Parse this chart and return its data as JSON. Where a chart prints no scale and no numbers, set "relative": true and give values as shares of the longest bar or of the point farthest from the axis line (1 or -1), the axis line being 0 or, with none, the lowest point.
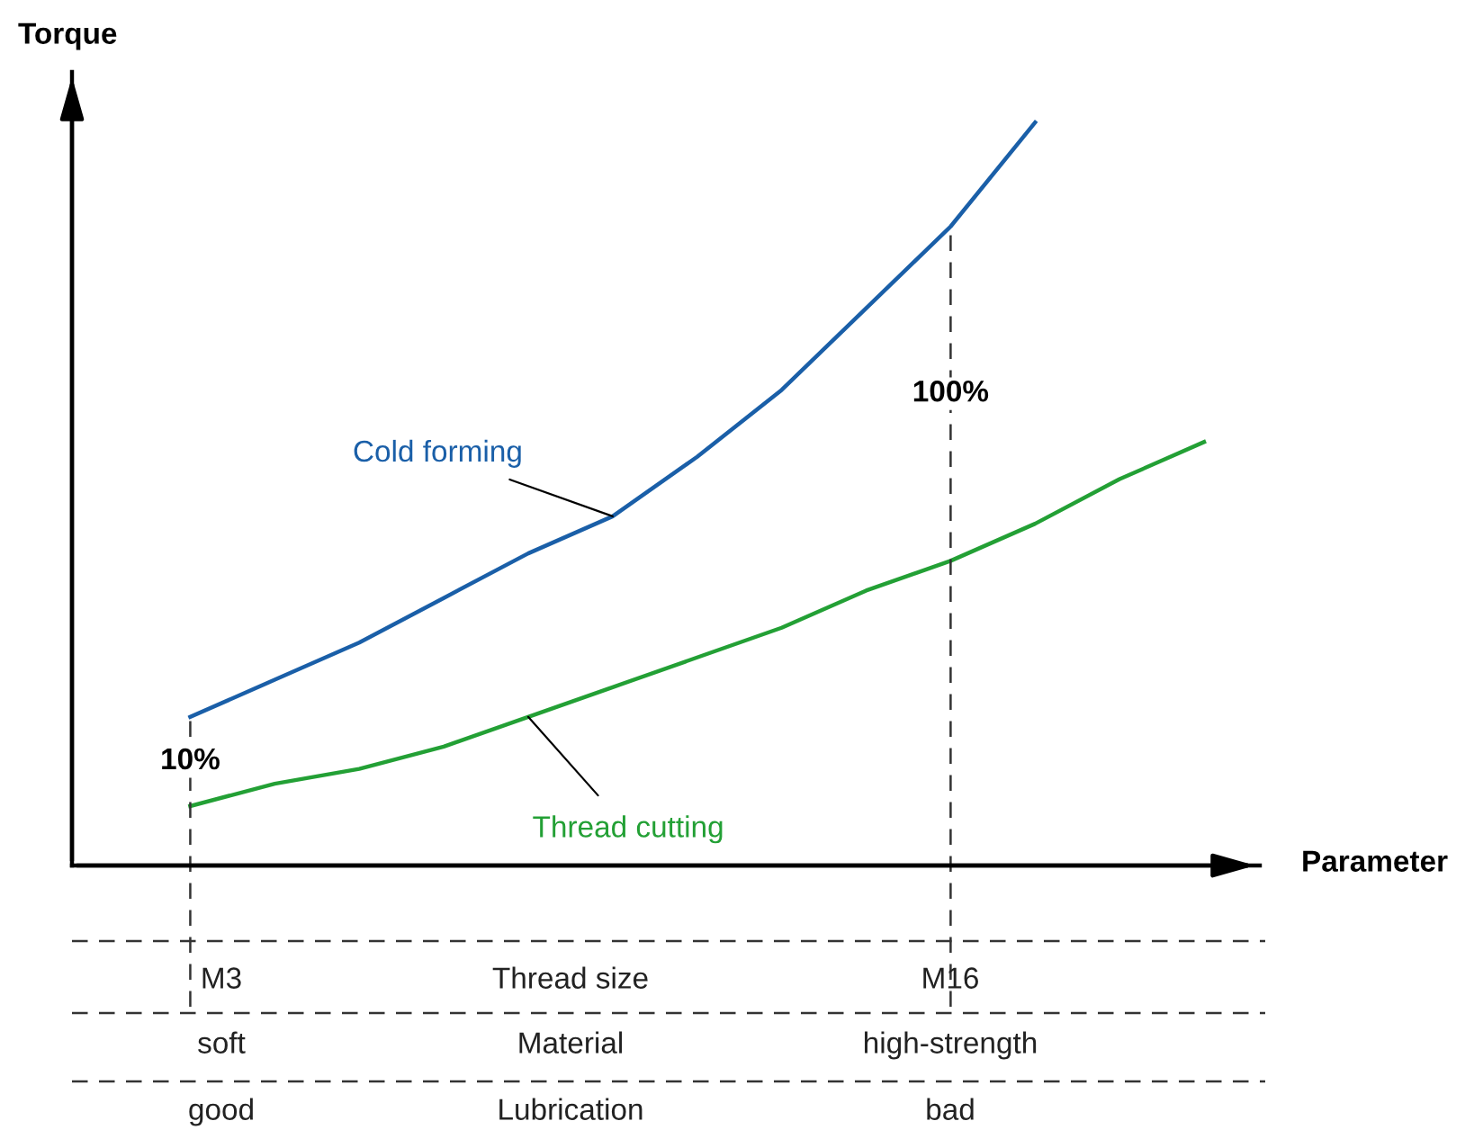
{
  "chart_data": {
    "type": "line",
    "relative": true,
    "xlabel": "Parameter",
    "ylabel": "Torque",
    "categories": [
      null,
      null,
      null,
      null,
      null,
      null,
      null,
      null,
      null,
      null,
      null,
      null,
      null
    ],
    "series": [
      {
        "name": "Cold forming",
        "color": "#1a5fa8",
        "values": [
          0.2,
          0.25,
          0.3,
          0.36,
          0.42,
          0.47,
          0.55,
          0.64,
          0.75,
          0.86,
          1.0,
          null,
          null
        ]
      },
      {
        "name": "Thread cutting",
        "color": "#23a035",
        "values": [
          0.08,
          0.11,
          0.13,
          0.16,
          0.2,
          0.24,
          0.28,
          0.32,
          0.37,
          0.41,
          0.46,
          0.52,
          0.57
        ]
      }
    ],
    "annotations": [
      "100%",
      "10%",
      "M3",
      "Thread size",
      "M16",
      "soft",
      "Material",
      "high-strength",
      "good",
      "Lubrication",
      "bad"
    ],
    "legend": false,
    "grid": false,
    "line_style": "solid",
    "marker": "none"
  }
}
